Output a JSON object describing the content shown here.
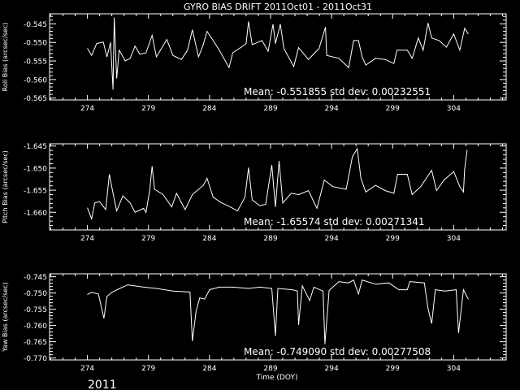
{
  "title": "GYRO BIAS DRIFT 2011Oct01 - 2011Oct31",
  "year_label": "2011",
  "colors": {
    "background": "#000000",
    "foreground": "#ffffff"
  },
  "chart_data": [
    {
      "type": "line",
      "ylabel": "Roll Bias (arcsec/sec)",
      "xlabel": "",
      "annotation": "Mean: -0.551855 std dev: 0.00232551",
      "xlim": [
        270.9,
        308.3
      ],
      "ylim": [
        -0.5655,
        -0.5423
      ],
      "xticks": [
        "274",
        "279",
        "284",
        "289",
        "294",
        "299",
        "304"
      ],
      "yticks": [
        "-0.545",
        "-0.550",
        "-0.555",
        "-0.560",
        "-0.565"
      ],
      "x": [
        274.0,
        274.35,
        274.76,
        275.3,
        275.6,
        275.9,
        276.1,
        276.2,
        276.4,
        276.6,
        277.1,
        277.5,
        277.9,
        278.3,
        278.8,
        279.3,
        279.65,
        280.5,
        281.0,
        281.7,
        282.2,
        282.6,
        283.1,
        283.45,
        283.8,
        284.3,
        284.8,
        285.6,
        285.9,
        286.6,
        287.0,
        287.2,
        287.5,
        288.3,
        288.8,
        289.2,
        289.4,
        289.8,
        290.1,
        290.9,
        291.3,
        292.1,
        292.97,
        293.5,
        293.6,
        294.6,
        295.4,
        295.8,
        296.2,
        296.5,
        296.8,
        297.6,
        298.4,
        299.1,
        299.35,
        300.2,
        300.6,
        301.1,
        301.5,
        301.9,
        302.2,
        302.8,
        303.4,
        304.0,
        304.5,
        304.9,
        305.2
      ],
      "y": [
        -0.5516,
        -0.5535,
        -0.5503,
        -0.5499,
        -0.5539,
        -0.55,
        -0.5627,
        -0.5433,
        -0.5597,
        -0.5521,
        -0.555,
        -0.5543,
        -0.551,
        -0.5532,
        -0.5528,
        -0.5481,
        -0.5539,
        -0.5492,
        -0.5535,
        -0.5546,
        -0.5521,
        -0.5466,
        -0.5539,
        -0.551,
        -0.547,
        -0.5495,
        -0.5521,
        -0.5568,
        -0.5528,
        -0.5513,
        -0.5503,
        -0.5444,
        -0.5506,
        -0.5495,
        -0.5524,
        -0.5451,
        -0.5503,
        -0.5451,
        -0.5517,
        -0.5565,
        -0.5514,
        -0.5546,
        -0.5517,
        -0.5459,
        -0.5535,
        -0.5543,
        -0.5568,
        -0.5495,
        -0.5495,
        -0.5539,
        -0.5561,
        -0.5543,
        -0.5546,
        -0.5557,
        -0.5521,
        -0.5521,
        -0.5543,
        -0.5488,
        -0.5521,
        -0.5448,
        -0.5488,
        -0.5495,
        -0.5513,
        -0.5477,
        -0.5521,
        -0.5462,
        -0.5477
      ]
    },
    {
      "type": "line",
      "ylabel": "Pitch Bias (arcsec/sec)",
      "xlabel": "",
      "annotation": "Mean: -1.65574 std dev: 0.00271341",
      "xlim": [
        270.9,
        308.3
      ],
      "ylim": [
        -1.664,
        -1.6445
      ],
      "xticks": [
        "274",
        "279",
        "284",
        "289",
        "294",
        "299",
        "304"
      ],
      "yticks": [
        "-1.645",
        "-1.650",
        "-1.655",
        "-1.660"
      ],
      "x": [
        274.0,
        274.35,
        274.6,
        275.0,
        275.5,
        275.8,
        276.1,
        276.4,
        276.9,
        277.5,
        277.9,
        278.6,
        278.8,
        279.1,
        279.3,
        279.5,
        280.2,
        280.9,
        281.3,
        282.0,
        282.6,
        283.5,
        283.8,
        284.3,
        285.0,
        285.5,
        286.3,
        286.9,
        287.2,
        287.5,
        288.1,
        288.6,
        289.1,
        289.4,
        289.7,
        290.0,
        290.7,
        291.3,
        292.1,
        292.8,
        293.4,
        294.1,
        295.2,
        295.7,
        296.1,
        296.4,
        296.8,
        297.6,
        298.4,
        299.1,
        299.4,
        300.2,
        300.6,
        301.3,
        302.2,
        302.6,
        303.2,
        304.0,
        304.5,
        304.8,
        304.9,
        305.1
      ],
      "y": [
        -1.659,
        -1.6615,
        -1.6579,
        -1.6576,
        -1.6594,
        -1.6514,
        -1.6557,
        -1.6597,
        -1.6563,
        -1.6579,
        -1.66,
        -1.6591,
        -1.66,
        -1.6551,
        -1.6496,
        -1.6548,
        -1.656,
        -1.6588,
        -1.6557,
        -1.6594,
        -1.656,
        -1.6539,
        -1.6523,
        -1.6566,
        -1.6579,
        -1.6585,
        -1.6597,
        -1.6566,
        -1.6499,
        -1.6572,
        -1.6585,
        -1.6582,
        -1.6493,
        -1.6588,
        -1.6484,
        -1.6579,
        -1.6557,
        -1.656,
        -1.6551,
        -1.6591,
        -1.6527,
        -1.6542,
        -1.6548,
        -1.6474,
        -1.6456,
        -1.6523,
        -1.6554,
        -1.6539,
        -1.6551,
        -1.6557,
        -1.6514,
        -1.6514,
        -1.656,
        -1.6542,
        -1.6505,
        -1.6551,
        -1.6527,
        -1.6508,
        -1.6542,
        -1.6554,
        -1.6502,
        -1.6459
      ]
    },
    {
      "type": "line",
      "ylabel": "Yaw Bias (arcsec/sec)",
      "xlabel": "Time (DOY)",
      "annotation": "Mean: -0.749090 std dev: 0.00277508",
      "xlim": [
        270.9,
        308.3
      ],
      "ylim": [
        -0.7706,
        -0.7441
      ],
      "xticks": [
        "274",
        "279",
        "284",
        "289",
        "294",
        "299",
        "304"
      ],
      "yticks": [
        "-0.745",
        "-0.750",
        "-0.755",
        "-0.760",
        "-0.765",
        "-0.770"
      ],
      "x": [
        274.0,
        274.35,
        274.9,
        275.35,
        275.6,
        276.0,
        276.65,
        277.3,
        278.6,
        279.65,
        281.0,
        282.4,
        282.6,
        282.9,
        283.2,
        283.6,
        284.0,
        284.8,
        285.9,
        287.2,
        288.1,
        289.1,
        289.4,
        289.6,
        290.8,
        291.2,
        291.3,
        291.6,
        292.2,
        292.55,
        293.3,
        293.45,
        293.8,
        294.6,
        295.4,
        295.8,
        296.2,
        296.5,
        297.6,
        298.7,
        299.5,
        300.2,
        300.4,
        301.6,
        301.9,
        302.2,
        302.5,
        303.3,
        304.2,
        304.4,
        304.8,
        305.2
      ],
      "y": [
        -0.7505,
        -0.7498,
        -0.7503,
        -0.7578,
        -0.7511,
        -0.7498,
        -0.7486,
        -0.7475,
        -0.7482,
        -0.7486,
        -0.7494,
        -0.7497,
        -0.7648,
        -0.7557,
        -0.7515,
        -0.7519,
        -0.749,
        -0.7482,
        -0.7482,
        -0.7486,
        -0.7482,
        -0.7486,
        -0.7632,
        -0.7486,
        -0.749,
        -0.7494,
        -0.7598,
        -0.7478,
        -0.7523,
        -0.7482,
        -0.7494,
        -0.7657,
        -0.7492,
        -0.7465,
        -0.7469,
        -0.746,
        -0.7503,
        -0.746,
        -0.7473,
        -0.7469,
        -0.749,
        -0.749,
        -0.7465,
        -0.7469,
        -0.7548,
        -0.7594,
        -0.749,
        -0.7494,
        -0.749,
        -0.7623,
        -0.749,
        -0.7519
      ]
    }
  ]
}
